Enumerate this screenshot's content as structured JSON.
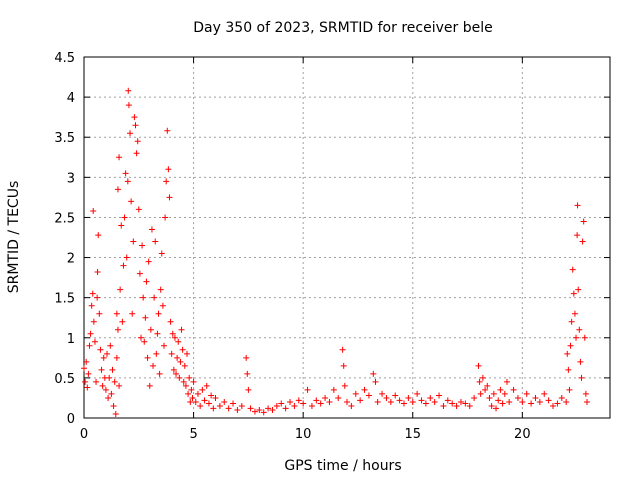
{
  "chart_data": {
    "type": "scatter",
    "title": "Day 350 of 2023, SRMTID for receiver bele",
    "xlabel": "GPS time / hours",
    "ylabel": "SRMTID / TECUs",
    "xlim": [
      0,
      24
    ],
    "ylim": [
      0,
      4.5
    ],
    "xticks": [
      0,
      5,
      10,
      15,
      20
    ],
    "xtick_labels": [
      "0",
      "5",
      "10",
      "15",
      "20"
    ],
    "yticks": [
      0,
      0.5,
      1,
      1.5,
      2,
      2.5,
      3,
      3.5,
      4,
      4.5
    ],
    "ytick_labels": [
      "0",
      "0.5",
      "1",
      "1.5",
      "2",
      "2.5",
      "3",
      "3.5",
      "4",
      "4.5"
    ],
    "grid": true,
    "marker": "+",
    "color": "#ff0000",
    "series": [
      {
        "name": "SRMTID",
        "points": [
          [
            0.0,
            0.62
          ],
          [
            0.05,
            0.45
          ],
          [
            0.1,
            0.7
          ],
          [
            0.15,
            0.38
          ],
          [
            0.2,
            0.55
          ],
          [
            0.25,
            0.9
          ],
          [
            0.3,
            1.05
          ],
          [
            0.35,
            1.4
          ],
          [
            0.4,
            1.55
          ],
          [
            0.42,
            2.58
          ],
          [
            0.45,
            1.2
          ],
          [
            0.5,
            0.95
          ],
          [
            0.55,
            0.45
          ],
          [
            0.6,
            1.5
          ],
          [
            0.62,
            1.82
          ],
          [
            0.65,
            2.28
          ],
          [
            0.7,
            1.3
          ],
          [
            0.75,
            0.85
          ],
          [
            0.8,
            0.6
          ],
          [
            0.85,
            0.4
          ],
          [
            0.9,
            0.75
          ],
          [
            0.95,
            0.5
          ],
          [
            1.0,
            0.35
          ],
          [
            1.05,
            0.8
          ],
          [
            1.1,
            0.25
          ],
          [
            1.15,
            0.5
          ],
          [
            1.2,
            0.9
          ],
          [
            1.25,
            0.3
          ],
          [
            1.3,
            0.6
          ],
          [
            1.35,
            0.15
          ],
          [
            1.4,
            0.45
          ],
          [
            1.45,
            0.05
          ],
          [
            1.5,
            0.75
          ],
          [
            1.55,
            1.1
          ],
          [
            1.6,
            0.4
          ],
          [
            1.5,
            1.3
          ],
          [
            1.55,
            2.85
          ],
          [
            1.6,
            3.25
          ],
          [
            1.65,
            1.6
          ],
          [
            1.7,
            2.4
          ],
          [
            1.75,
            1.2
          ],
          [
            1.8,
            1.9
          ],
          [
            1.85,
            2.5
          ],
          [
            1.9,
            3.05
          ],
          [
            1.95,
            2.0
          ],
          [
            2.0,
            2.95
          ],
          [
            2.02,
            4.08
          ],
          [
            2.05,
            3.9
          ],
          [
            2.1,
            3.55
          ],
          [
            2.15,
            2.7
          ],
          [
            2.2,
            1.3
          ],
          [
            2.25,
            2.2
          ],
          [
            2.3,
            3.75
          ],
          [
            2.35,
            3.65
          ],
          [
            2.4,
            3.3
          ],
          [
            2.45,
            3.45
          ],
          [
            2.5,
            2.6
          ],
          [
            2.55,
            1.8
          ],
          [
            2.6,
            1.0
          ],
          [
            2.65,
            2.15
          ],
          [
            2.7,
            1.5
          ],
          [
            2.75,
            0.95
          ],
          [
            2.8,
            1.25
          ],
          [
            2.85,
            1.7
          ],
          [
            2.9,
            0.75
          ],
          [
            2.95,
            1.95
          ],
          [
            3.0,
            0.4
          ],
          [
            3.05,
            1.1
          ],
          [
            3.1,
            2.35
          ],
          [
            3.15,
            0.65
          ],
          [
            3.2,
            1.5
          ],
          [
            3.25,
            2.2
          ],
          [
            3.3,
            0.8
          ],
          [
            3.35,
            1.05
          ],
          [
            3.4,
            1.3
          ],
          [
            3.45,
            0.55
          ],
          [
            3.5,
            1.6
          ],
          [
            3.55,
            2.05
          ],
          [
            3.6,
            1.4
          ],
          [
            3.65,
            0.9
          ],
          [
            3.7,
            2.5
          ],
          [
            3.75,
            2.95
          ],
          [
            3.8,
            3.58
          ],
          [
            3.85,
            3.1
          ],
          [
            3.9,
            2.75
          ],
          [
            3.95,
            1.2
          ],
          [
            4.0,
            0.8
          ],
          [
            4.05,
            1.05
          ],
          [
            4.1,
            0.6
          ],
          [
            4.15,
            1.0
          ],
          [
            4.2,
            0.55
          ],
          [
            4.25,
            0.75
          ],
          [
            4.3,
            0.95
          ],
          [
            4.35,
            0.5
          ],
          [
            4.4,
            0.7
          ],
          [
            4.45,
            1.1
          ],
          [
            4.5,
            0.85
          ],
          [
            4.55,
            0.45
          ],
          [
            4.6,
            0.65
          ],
          [
            4.65,
            0.4
          ],
          [
            4.7,
            0.8
          ],
          [
            4.75,
            0.3
          ],
          [
            4.8,
            0.5
          ],
          [
            4.85,
            0.2
          ],
          [
            4.9,
            0.35
          ],
          [
            4.95,
            0.25
          ],
          [
            5.0,
            0.45
          ],
          [
            5.1,
            0.2
          ],
          [
            5.2,
            0.3
          ],
          [
            5.3,
            0.15
          ],
          [
            5.4,
            0.35
          ],
          [
            5.5,
            0.22
          ],
          [
            5.6,
            0.4
          ],
          [
            5.7,
            0.18
          ],
          [
            5.8,
            0.28
          ],
          [
            5.9,
            0.12
          ],
          [
            6.0,
            0.25
          ],
          [
            6.2,
            0.15
          ],
          [
            6.4,
            0.2
          ],
          [
            6.6,
            0.12
          ],
          [
            6.8,
            0.18
          ],
          [
            7.0,
            0.1
          ],
          [
            7.2,
            0.15
          ],
          [
            7.4,
            0.75
          ],
          [
            7.45,
            0.55
          ],
          [
            7.5,
            0.35
          ],
          [
            7.6,
            0.12
          ],
          [
            7.8,
            0.08
          ],
          [
            8.0,
            0.1
          ],
          [
            8.2,
            0.07
          ],
          [
            8.4,
            0.12
          ],
          [
            8.6,
            0.1
          ],
          [
            8.8,
            0.15
          ],
          [
            9.0,
            0.18
          ],
          [
            9.2,
            0.12
          ],
          [
            9.4,
            0.2
          ],
          [
            9.6,
            0.15
          ],
          [
            9.8,
            0.22
          ],
          [
            10.0,
            0.18
          ],
          [
            10.2,
            0.35
          ],
          [
            10.4,
            0.15
          ],
          [
            10.6,
            0.22
          ],
          [
            10.8,
            0.18
          ],
          [
            11.0,
            0.25
          ],
          [
            11.2,
            0.2
          ],
          [
            11.4,
            0.35
          ],
          [
            11.6,
            0.25
          ],
          [
            11.8,
            0.85
          ],
          [
            11.85,
            0.65
          ],
          [
            11.9,
            0.4
          ],
          [
            12.0,
            0.2
          ],
          [
            12.2,
            0.15
          ],
          [
            12.4,
            0.3
          ],
          [
            12.6,
            0.22
          ],
          [
            12.8,
            0.35
          ],
          [
            13.0,
            0.28
          ],
          [
            13.2,
            0.55
          ],
          [
            13.3,
            0.45
          ],
          [
            13.4,
            0.2
          ],
          [
            13.6,
            0.3
          ],
          [
            13.8,
            0.25
          ],
          [
            14.0,
            0.2
          ],
          [
            14.2,
            0.28
          ],
          [
            14.4,
            0.22
          ],
          [
            14.6,
            0.18
          ],
          [
            14.8,
            0.25
          ],
          [
            15.0,
            0.2
          ],
          [
            15.2,
            0.3
          ],
          [
            15.4,
            0.22
          ],
          [
            15.6,
            0.18
          ],
          [
            15.8,
            0.25
          ],
          [
            16.0,
            0.2
          ],
          [
            16.2,
            0.28
          ],
          [
            16.4,
            0.15
          ],
          [
            16.6,
            0.22
          ],
          [
            16.8,
            0.18
          ],
          [
            17.0,
            0.15
          ],
          [
            17.2,
            0.2
          ],
          [
            17.4,
            0.18
          ],
          [
            17.6,
            0.15
          ],
          [
            17.8,
            0.25
          ],
          [
            18.0,
            0.65
          ],
          [
            18.05,
            0.45
          ],
          [
            18.1,
            0.3
          ],
          [
            18.2,
            0.5
          ],
          [
            18.3,
            0.35
          ],
          [
            18.4,
            0.4
          ],
          [
            18.5,
            0.25
          ],
          [
            18.6,
            0.15
          ],
          [
            18.7,
            0.3
          ],
          [
            18.8,
            0.12
          ],
          [
            18.9,
            0.22
          ],
          [
            19.0,
            0.35
          ],
          [
            19.1,
            0.18
          ],
          [
            19.2,
            0.3
          ],
          [
            19.3,
            0.45
          ],
          [
            19.4,
            0.2
          ],
          [
            19.6,
            0.35
          ],
          [
            19.8,
            0.25
          ],
          [
            20.0,
            0.2
          ],
          [
            20.2,
            0.3
          ],
          [
            20.4,
            0.18
          ],
          [
            20.6,
            0.25
          ],
          [
            20.8,
            0.2
          ],
          [
            21.0,
            0.3
          ],
          [
            21.2,
            0.22
          ],
          [
            21.4,
            0.15
          ],
          [
            21.6,
            0.18
          ],
          [
            21.8,
            0.25
          ],
          [
            22.0,
            0.2
          ],
          [
            22.05,
            0.8
          ],
          [
            22.1,
            0.6
          ],
          [
            22.15,
            0.35
          ],
          [
            22.2,
            0.9
          ],
          [
            22.25,
            1.2
          ],
          [
            22.3,
            1.85
          ],
          [
            22.35,
            1.55
          ],
          [
            22.4,
            1.3
          ],
          [
            22.45,
            1.0
          ],
          [
            22.5,
            2.28
          ],
          [
            22.52,
            2.65
          ],
          [
            22.55,
            1.6
          ],
          [
            22.6,
            1.1
          ],
          [
            22.65,
            0.7
          ],
          [
            22.7,
            0.5
          ],
          [
            22.75,
            2.2
          ],
          [
            22.8,
            2.45
          ],
          [
            22.85,
            1.0
          ],
          [
            22.9,
            0.3
          ],
          [
            22.95,
            0.2
          ]
        ]
      }
    ]
  }
}
